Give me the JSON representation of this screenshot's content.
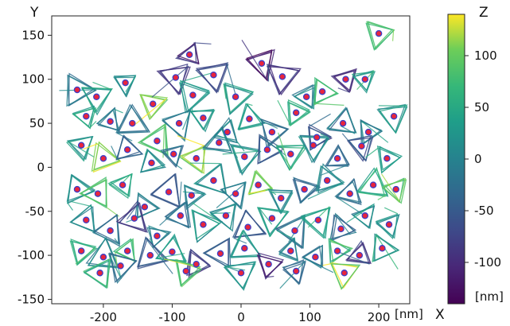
{
  "chart_data": {
    "type": "scatter",
    "description_text": {
      "xlabel": "X",
      "ylabel": "Y",
      "x_unit_label": "[nm]",
      "colorbar_label": "Z",
      "colorbar_unit_label": "[nm]"
    },
    "xlim": [
      -275,
      245
    ],
    "ylim": [
      -155,
      172
    ],
    "x_ticks": [
      -200,
      -100,
      0,
      100,
      200
    ],
    "x_tick_labels": [
      "-200",
      "-100",
      "0",
      "100",
      "200"
    ],
    "y_ticks": [
      -150,
      -100,
      -50,
      0,
      50,
      100,
      150
    ],
    "y_tick_labels": [
      "-150",
      "-100",
      "-50",
      "0",
      "50",
      "100",
      "150"
    ],
    "colorbar": {
      "colormap": "viridis",
      "zlim": [
        -140,
        140
      ],
      "ticks": [
        100,
        50,
        0,
        -50,
        -100
      ],
      "tick_labels": [
        "100",
        "50",
        "0",
        "-50",
        "-100"
      ]
    },
    "grid": false,
    "marker_color": "#e8253c",
    "marker_edge_color": "#3b3fc9",
    "triangle_rows_y": [
      -115,
      -80,
      -45,
      -10,
      25,
      60,
      95
    ],
    "points": [
      {
        "x": -238,
        "y": 88,
        "z": -20
      },
      {
        "x": -210,
        "y": 80,
        "z": 30
      },
      {
        "x": -168,
        "y": 96,
        "z": 10
      },
      {
        "x": -128,
        "y": 72,
        "z": 110
      },
      {
        "x": -95,
        "y": 102,
        "z": -90
      },
      {
        "x": -70,
        "y": 82,
        "z": 20
      },
      {
        "x": -40,
        "y": 105,
        "z": -60
      },
      {
        "x": -8,
        "y": 80,
        "z": 40
      },
      {
        "x": 30,
        "y": 118,
        "z": -120
      },
      {
        "x": 60,
        "y": 103,
        "z": -70
      },
      {
        "x": 95,
        "y": 80,
        "z": 0
      },
      {
        "x": 118,
        "y": 86,
        "z": 60
      },
      {
        "x": 152,
        "y": 100,
        "z": -110
      },
      {
        "x": 180,
        "y": 100,
        "z": 50
      },
      {
        "x": 200,
        "y": 152,
        "z": 80
      },
      {
        "x": -75,
        "y": 128,
        "z": -100
      },
      {
        "x": -225,
        "y": 58,
        "z": 30
      },
      {
        "x": -190,
        "y": 52,
        "z": 10
      },
      {
        "x": -158,
        "y": 50,
        "z": -30
      },
      {
        "x": -122,
        "y": 30,
        "z": 70
      },
      {
        "x": -90,
        "y": 50,
        "z": -10
      },
      {
        "x": -55,
        "y": 56,
        "z": 20
      },
      {
        "x": -20,
        "y": 40,
        "z": 0
      },
      {
        "x": 12,
        "y": 55,
        "z": 30
      },
      {
        "x": 45,
        "y": 40,
        "z": -20
      },
      {
        "x": 80,
        "y": 62,
        "z": 40
      },
      {
        "x": 110,
        "y": 34,
        "z": -60
      },
      {
        "x": 148,
        "y": 50,
        "z": -20
      },
      {
        "x": 185,
        "y": 40,
        "z": 10
      },
      {
        "x": 222,
        "y": 58,
        "z": 20
      },
      {
        "x": -232,
        "y": 25,
        "z": 20
      },
      {
        "x": -200,
        "y": 10,
        "z": 110
      },
      {
        "x": -165,
        "y": 20,
        "z": -40
      },
      {
        "x": -130,
        "y": 5,
        "z": 20
      },
      {
        "x": -98,
        "y": 15,
        "z": -20
      },
      {
        "x": -65,
        "y": 10,
        "z": 120
      },
      {
        "x": -32,
        "y": 28,
        "z": -10
      },
      {
        "x": 5,
        "y": 12,
        "z": 20
      },
      {
        "x": 38,
        "y": 20,
        "z": -30
      },
      {
        "x": 72,
        "y": 15,
        "z": 60
      },
      {
        "x": 105,
        "y": 25,
        "z": 10
      },
      {
        "x": 140,
        "y": 10,
        "z": -30
      },
      {
        "x": 175,
        "y": 24,
        "z": -70
      },
      {
        "x": 212,
        "y": 10,
        "z": 30
      },
      {
        "x": -238,
        "y": -25,
        "z": 10
      },
      {
        "x": -208,
        "y": -30,
        "z": 80
      },
      {
        "x": -172,
        "y": -20,
        "z": 40
      },
      {
        "x": -140,
        "y": -45,
        "z": -10
      },
      {
        "x": -105,
        "y": -28,
        "z": -50
      },
      {
        "x": -72,
        "y": -32,
        "z": 0
      },
      {
        "x": -40,
        "y": -15,
        "z": 20
      },
      {
        "x": -8,
        "y": -30,
        "z": -30
      },
      {
        "x": 25,
        "y": -20,
        "z": 110
      },
      {
        "x": 58,
        "y": -35,
        "z": 30
      },
      {
        "x": 92,
        "y": -25,
        "z": -50
      },
      {
        "x": 125,
        "y": -15,
        "z": 0
      },
      {
        "x": 158,
        "y": -30,
        "z": -20
      },
      {
        "x": 192,
        "y": -20,
        "z": 60
      },
      {
        "x": 225,
        "y": -25,
        "z": 90
      },
      {
        "x": -225,
        "y": -60,
        "z": 20
      },
      {
        "x": -190,
        "y": -72,
        "z": -20
      },
      {
        "x": -155,
        "y": -58,
        "z": -80
      },
      {
        "x": -122,
        "y": -78,
        "z": 10
      },
      {
        "x": -88,
        "y": -55,
        "z": -40
      },
      {
        "x": -55,
        "y": -65,
        "z": 30
      },
      {
        "x": -22,
        "y": -55,
        "z": 0
      },
      {
        "x": 10,
        "y": -68,
        "z": -50
      },
      {
        "x": 45,
        "y": -58,
        "z": 20
      },
      {
        "x": 78,
        "y": -72,
        "z": -20
      },
      {
        "x": 112,
        "y": -60,
        "z": 40
      },
      {
        "x": 145,
        "y": -70,
        "z": -30
      },
      {
        "x": 180,
        "y": -55,
        "z": 10
      },
      {
        "x": 215,
        "y": -65,
        "z": 30
      },
      {
        "x": -232,
        "y": -95,
        "z": 60
      },
      {
        "x": -200,
        "y": -102,
        "z": 10
      },
      {
        "x": -165,
        "y": -95,
        "z": 80
      },
      {
        "x": -132,
        "y": -100,
        "z": -60
      },
      {
        "x": -100,
        "y": -96,
        "z": 20
      },
      {
        "x": -65,
        "y": -110,
        "z": -90
      },
      {
        "x": -30,
        "y": -98,
        "z": -40
      },
      {
        "x": 5,
        "y": -92,
        "z": 30
      },
      {
        "x": 40,
        "y": -110,
        "z": -120
      },
      {
        "x": 72,
        "y": -95,
        "z": 10
      },
      {
        "x": 108,
        "y": -102,
        "z": -30
      },
      {
        "x": 140,
        "y": -95,
        "z": 70
      },
      {
        "x": 172,
        "y": -100,
        "z": -70
      },
      {
        "x": 205,
        "y": -92,
        "z": 40
      },
      {
        "x": -175,
        "y": -112,
        "z": -10
      },
      {
        "x": -80,
        "y": -118,
        "z": 100
      },
      {
        "x": 0,
        "y": -120,
        "z": 20
      },
      {
        "x": 80,
        "y": -118,
        "z": -20
      },
      {
        "x": 150,
        "y": -120,
        "z": 110
      },
      {
        "x": -205,
        "y": -120,
        "z": 50
      }
    ]
  }
}
